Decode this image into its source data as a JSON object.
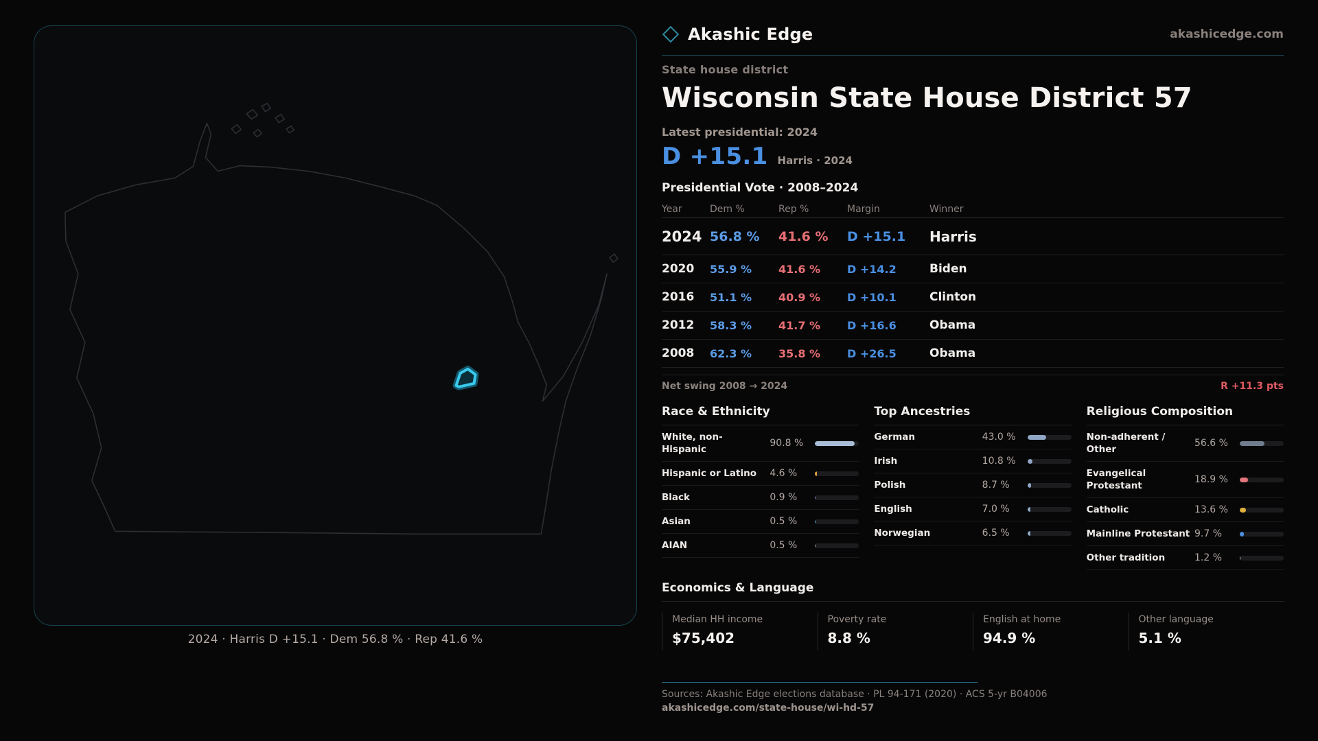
{
  "brand": {
    "name": "Akashic Edge",
    "site": "akashicedge.com"
  },
  "map": {
    "caption": "2024 · Harris D +15.1 · Dem 56.8 % · Rep 41.6 %",
    "state": "Wisconsin",
    "highlight_color": "#39c9ec",
    "outline_color": "#2c2f33"
  },
  "header": {
    "kicker": "State house district",
    "title": "Wisconsin State House District 57",
    "latest_label": "Latest presidential: 2024",
    "headline_margin": "D +15.1",
    "headline_detail": "Harris · 2024"
  },
  "table": {
    "title": "Presidential Vote · 2008–2024",
    "columns": {
      "year": "Year",
      "dem": "Dem %",
      "rep": "Rep %",
      "margin": "Margin",
      "winner": "Winner"
    },
    "rows": [
      {
        "year": "2024",
        "dem": "56.8 %",
        "rep": "41.6 %",
        "margin": "D +15.1",
        "winner": "Harris"
      },
      {
        "year": "2020",
        "dem": "55.9 %",
        "rep": "41.6 %",
        "margin": "D +14.2",
        "winner": "Biden"
      },
      {
        "year": "2016",
        "dem": "51.1 %",
        "rep": "40.9 %",
        "margin": "D +10.1",
        "winner": "Clinton"
      },
      {
        "year": "2012",
        "dem": "58.3 %",
        "rep": "41.7 %",
        "margin": "D +16.6",
        "winner": "Obama"
      },
      {
        "year": "2008",
        "dem": "62.3 %",
        "rep": "35.8 %",
        "margin": "D +26.5",
        "winner": "Obama"
      }
    ],
    "net_swing_label": "Net swing 2008 → 2024",
    "net_swing_value": "R +11.3 pts"
  },
  "race": {
    "title": "Race & Ethnicity",
    "rows": [
      {
        "label": "White, non-Hispanic",
        "value": "90.8 %",
        "pct": 90.8,
        "color": "#a9bdd6"
      },
      {
        "label": "Hispanic or Latino",
        "value": "4.6 %",
        "pct": 4.6,
        "color": "#e6a23c"
      },
      {
        "label": "Black",
        "value": "0.9 %",
        "pct": 0.9,
        "color": "#8b7fe0"
      },
      {
        "label": "Asian",
        "value": "0.5 %",
        "pct": 0.5,
        "color": "#56c2c9"
      },
      {
        "label": "AIAN",
        "value": "0.5 %",
        "pct": 0.5,
        "color": "#9aa3ad"
      }
    ]
  },
  "ancestries": {
    "title": "Top Ancestries",
    "rows": [
      {
        "label": "German",
        "value": "43.0 %",
        "pct": 43.0,
        "color": "#8fa7c4"
      },
      {
        "label": "Irish",
        "value": "10.8 %",
        "pct": 10.8,
        "color": "#8fa7c4"
      },
      {
        "label": "Polish",
        "value": "8.7 %",
        "pct": 8.7,
        "color": "#8fa7c4"
      },
      {
        "label": "English",
        "value": "7.0 %",
        "pct": 7.0,
        "color": "#8fa7c4"
      },
      {
        "label": "Norwegian",
        "value": "6.5 %",
        "pct": 6.5,
        "color": "#8fa7c4"
      }
    ]
  },
  "religion": {
    "title": "Religious Composition",
    "rows": [
      {
        "label": "Non-adherent / Other",
        "value": "56.6 %",
        "pct": 56.6,
        "color": "#6f7d8e"
      },
      {
        "label": "Evangelical Protestant",
        "value": "18.9 %",
        "pct": 18.9,
        "color": "#e2767c"
      },
      {
        "label": "Catholic",
        "value": "13.6 %",
        "pct": 13.6,
        "color": "#e2b13c"
      },
      {
        "label": "Mainline Protestant",
        "value": "9.7 %",
        "pct": 9.7,
        "color": "#4e8fe0"
      },
      {
        "label": "Other tradition",
        "value": "1.2 %",
        "pct": 1.2,
        "color": "#d6d7d9"
      }
    ]
  },
  "economics": {
    "title": "Economics & Language",
    "stats": [
      {
        "label": "Median HH income",
        "value": "$75,402"
      },
      {
        "label": "Poverty rate",
        "value": "8.8 %"
      },
      {
        "label": "English at home",
        "value": "94.9 %"
      },
      {
        "label": "Other language",
        "value": "5.1 %"
      }
    ]
  },
  "footer": {
    "sources": "Sources: Akashic Edge elections database · PL 94-171 (2020) · ACS 5-yr B04006",
    "permalink": "akashicedge.com/state-house/wi-hd-57"
  },
  "colors": {
    "dem_blue": "#5b9ce6",
    "rep_red": "#e76f74",
    "margin_blue": "#4a90e2",
    "swing_red": "#e25b62",
    "accent_teal": "#1d4f5a"
  }
}
